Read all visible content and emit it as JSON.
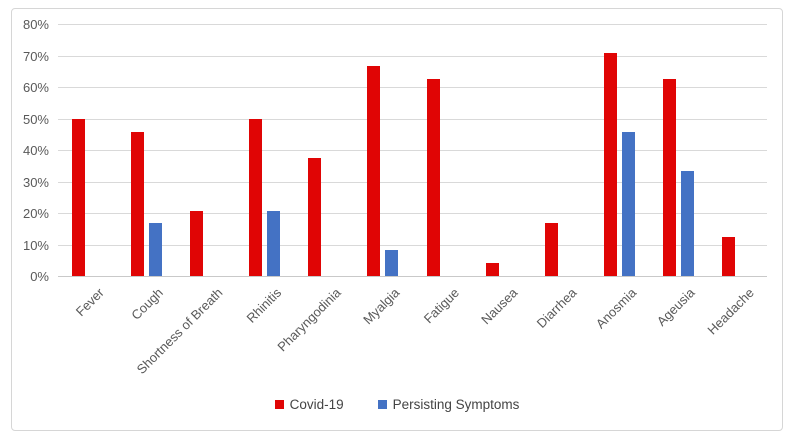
{
  "chart_data": {
    "type": "bar",
    "title": "",
    "categories": [
      "Fever",
      "Cough",
      "Shortness of Breath",
      "Rhinitis",
      "Pharyngodinia",
      "Myalgia",
      "Fatigue",
      "Nausea",
      "Diarrhea",
      "Anosmia",
      "Ageusia",
      "Headache"
    ],
    "series": [
      {
        "name": "Covid-19",
        "color": "#e00505",
        "values": [
          50.0,
          45.8,
          20.8,
          50.0,
          37.5,
          66.7,
          62.5,
          4.2,
          16.7,
          70.8,
          62.5,
          12.5
        ]
      },
      {
        "name": "Persisting Symptoms",
        "color": "#4472c4",
        "values": [
          0,
          16.7,
          0,
          20.8,
          0,
          8.3,
          0,
          0,
          0,
          45.8,
          33.3,
          0
        ]
      }
    ],
    "ylabel": "",
    "xlabel": "",
    "ylim": [
      0,
      80
    ],
    "y_ticks": [
      "0%",
      "10%",
      "20%",
      "30%",
      "40%",
      "50%",
      "60%",
      "70%",
      "80%"
    ],
    "grid": true,
    "legend_position": "bottom",
    "value_format": "percent"
  },
  "colors": {
    "gridline": "#d9d9d9",
    "axis_line": "#c9c9c9",
    "axis_text": "#595959",
    "legend_text": "#444444",
    "frame_border": "#d6d6d6",
    "background": "#ffffff"
  }
}
